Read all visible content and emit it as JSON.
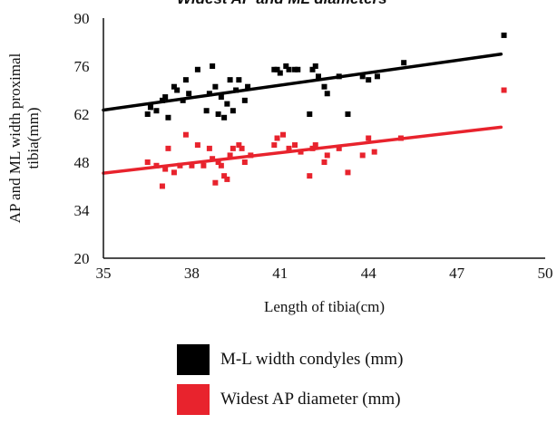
{
  "chart_data": {
    "type": "scatter",
    "title": "",
    "xlabel": "Length of tibia(cm)",
    "ylabel": "AP and ML width proximal tibia(mm)",
    "ylabel_lines": [
      "AP and ML width proximal",
      "tibia(mm)"
    ],
    "xlim": [
      35,
      50
    ],
    "ylim": [
      20,
      90
    ],
    "x_ticks": [
      "35",
      "38",
      "41",
      "44",
      "47",
      "50"
    ],
    "y_ticks": [
      "20",
      "34",
      "48",
      "62",
      "76",
      "90"
    ],
    "grid": false,
    "legend_position": "bottom",
    "series": [
      {
        "name": "M-L width condyles (mm)",
        "color": "#000000",
        "trendline": [
          [
            35,
            63.2
          ],
          [
            48.5,
            79.5
          ]
        ],
        "points": [
          [
            36.5,
            62
          ],
          [
            36.6,
            64
          ],
          [
            36.8,
            63
          ],
          [
            37.0,
            66
          ],
          [
            37.1,
            67
          ],
          [
            37.2,
            61
          ],
          [
            37.4,
            70
          ],
          [
            37.5,
            69
          ],
          [
            37.7,
            66
          ],
          [
            37.8,
            72
          ],
          [
            37.9,
            68
          ],
          [
            38.2,
            75
          ],
          [
            38.5,
            63
          ],
          [
            38.6,
            68
          ],
          [
            38.7,
            76
          ],
          [
            38.8,
            70
          ],
          [
            38.9,
            62
          ],
          [
            39.0,
            67
          ],
          [
            39.1,
            61
          ],
          [
            39.2,
            65
          ],
          [
            39.3,
            72
          ],
          [
            39.4,
            63
          ],
          [
            39.5,
            69
          ],
          [
            39.6,
            72
          ],
          [
            39.8,
            66
          ],
          [
            39.9,
            70
          ],
          [
            40.8,
            75
          ],
          [
            40.9,
            75
          ],
          [
            41.0,
            74
          ],
          [
            41.2,
            76
          ],
          [
            41.3,
            75
          ],
          [
            41.5,
            75
          ],
          [
            41.6,
            75
          ],
          [
            42.0,
            62
          ],
          [
            42.1,
            75
          ],
          [
            42.2,
            76
          ],
          [
            42.3,
            73
          ],
          [
            42.5,
            70
          ],
          [
            42.6,
            68
          ],
          [
            43.0,
            73
          ],
          [
            43.3,
            62
          ],
          [
            43.8,
            73
          ],
          [
            44.0,
            72
          ],
          [
            44.3,
            73
          ],
          [
            45.2,
            77
          ],
          [
            48.6,
            85
          ]
        ]
      },
      {
        "name": "Widest AP diameter (mm)",
        "color": "#e8232d",
        "trendline": [
          [
            35,
            44.8
          ],
          [
            48.5,
            58.2
          ]
        ],
        "points": [
          [
            36.5,
            48
          ],
          [
            36.8,
            47
          ],
          [
            37.0,
            41
          ],
          [
            37.1,
            46
          ],
          [
            37.2,
            52
          ],
          [
            37.4,
            45
          ],
          [
            37.6,
            47
          ],
          [
            37.8,
            56
          ],
          [
            38.0,
            47
          ],
          [
            38.2,
            53
          ],
          [
            38.4,
            47
          ],
          [
            38.6,
            52
          ],
          [
            38.7,
            49
          ],
          [
            38.8,
            42
          ],
          [
            38.9,
            48
          ],
          [
            39.0,
            47
          ],
          [
            39.1,
            44
          ],
          [
            39.2,
            43
          ],
          [
            39.3,
            50
          ],
          [
            39.4,
            52
          ],
          [
            39.6,
            53
          ],
          [
            39.7,
            52
          ],
          [
            39.8,
            48
          ],
          [
            40.0,
            50
          ],
          [
            40.8,
            53
          ],
          [
            40.9,
            55
          ],
          [
            41.1,
            56
          ],
          [
            41.3,
            52
          ],
          [
            41.5,
            53
          ],
          [
            41.7,
            51
          ],
          [
            42.0,
            44
          ],
          [
            42.1,
            52
          ],
          [
            42.2,
            53
          ],
          [
            42.5,
            48
          ],
          [
            42.6,
            50
          ],
          [
            43.0,
            52
          ],
          [
            43.3,
            45
          ],
          [
            43.8,
            50
          ],
          [
            44.0,
            55
          ],
          [
            44.2,
            51
          ],
          [
            45.1,
            55
          ],
          [
            48.6,
            69
          ]
        ]
      }
    ]
  },
  "clipped_title": "Widest AP and ML diameters"
}
